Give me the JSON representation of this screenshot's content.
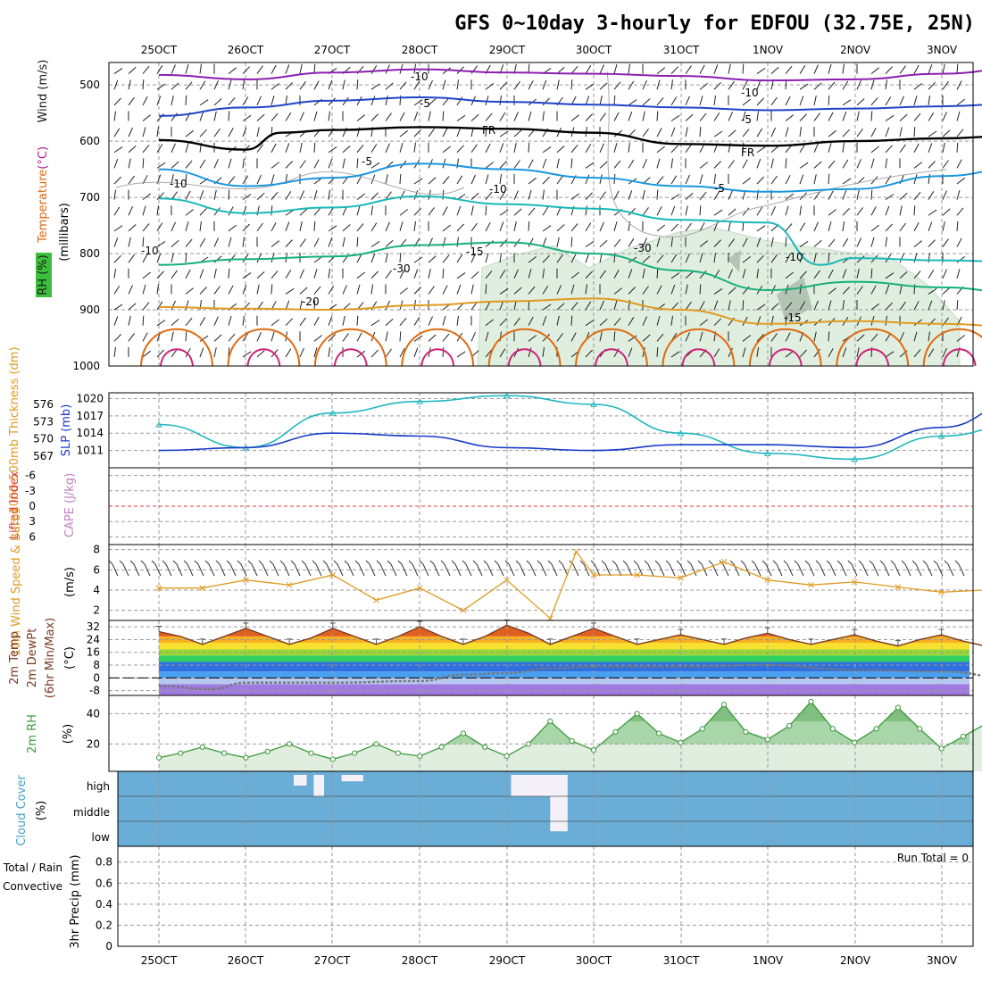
{
  "title": "GFS 0~10day 3-hourly for EDFOU (32.75E, 25N)",
  "chart_data": [
    {
      "panel": "upper-air",
      "type": "line",
      "ylabel_parts": [
        {
          "text": "RH (%)",
          "color": "#1a1a1a"
        },
        {
          "text": "Temperature",
          "color": "#e06a10"
        },
        {
          "text": "(°C)",
          "color": "#b01890"
        },
        {
          "text": "Wind (m/s)",
          "color": "#1a1a1a"
        }
      ],
      "ylabel2": "(millibars)",
      "y_ticks": [
        500,
        600,
        700,
        800,
        900,
        1000
      ],
      "ylim": [
        460,
        1000
      ],
      "x_ticks": [
        "25OCT",
        "26OCT",
        "27OCT",
        "28OCT",
        "29OCT",
        "30OCT",
        "31OCT",
        "1NOV",
        "2NOV",
        "3NOV"
      ],
      "xlim_days": [
        0,
        9.9
      ],
      "contour_labels": [
        "-10",
        "-10",
        "-5",
        "-5",
        "FR",
        "FR",
        "-5",
        "-5",
        "-10",
        "-10",
        "-15",
        "-15",
        "-20",
        "-10",
        "-10",
        "-30",
        "-30"
      ],
      "series": [
        {
          "label": "-10",
          "color": "#8a1fb0",
          "x": [
            0,
            1,
            2,
            3,
            4,
            5,
            6,
            7,
            8,
            9,
            9.9
          ],
          "y": [
            482,
            490,
            478,
            472,
            478,
            480,
            484,
            492,
            490,
            480,
            470
          ]
        },
        {
          "label": "-5",
          "color": "#1f44c8",
          "x": [
            0,
            1,
            2,
            3,
            4,
            5,
            6,
            7,
            8,
            9,
            9.9
          ],
          "y": [
            555,
            540,
            528,
            522,
            530,
            535,
            540,
            545,
            542,
            538,
            533
          ]
        },
        {
          "label": "FR",
          "color": "#000000",
          "x": [
            0,
            1,
            1.4,
            2,
            3,
            4,
            5,
            6,
            7,
            8,
            9,
            9.9
          ],
          "y": [
            598,
            615,
            585,
            580,
            575,
            578,
            585,
            605,
            608,
            600,
            595,
            590
          ]
        },
        {
          "label": "5",
          "color": "#1a96e0",
          "x": [
            0,
            1,
            2,
            3,
            4,
            5,
            6,
            7,
            8,
            9,
            9.9
          ],
          "y": [
            650,
            680,
            665,
            640,
            650,
            665,
            680,
            690,
            685,
            662,
            648
          ]
        },
        {
          "label": "10",
          "color": "#1ab8b8",
          "x": [
            0,
            1,
            2,
            3,
            4,
            5,
            6,
            7,
            7.6,
            8,
            9,
            9.9
          ],
          "y": [
            702,
            728,
            718,
            698,
            712,
            720,
            740,
            745,
            820,
            808,
            812,
            815
          ]
        },
        {
          "label": "15",
          "color": "#14b07a",
          "x": [
            0,
            1,
            2,
            3,
            4,
            5,
            6,
            7,
            8,
            9,
            9.9
          ],
          "y": [
            820,
            810,
            805,
            785,
            780,
            800,
            830,
            865,
            850,
            860,
            870
          ]
        },
        {
          "label": "20",
          "color": "#e09a20",
          "x": [
            0,
            1,
            2,
            3,
            4,
            5,
            6,
            7,
            8,
            9,
            9.9
          ],
          "y": [
            895,
            898,
            900,
            892,
            885,
            880,
            900,
            925,
            920,
            925,
            930
          ]
        }
      ]
    },
    {
      "panel": "thickness-slp",
      "type": "line",
      "ylabel_left": "1000-500mb Thickness (dm)",
      "ylabel_right": "SLP (mb)",
      "y_ticks_left": [
        567,
        570,
        573,
        576
      ],
      "y_ticks_right": [
        1011,
        1014,
        1017,
        1020
      ],
      "series": [
        {
          "name": "thickness",
          "color": "#20b8c0",
          "x": [
            0,
            1,
            2,
            3,
            4,
            5,
            6,
            7,
            8,
            9,
            9.9
          ],
          "y": [
            572.5,
            568.5,
            574.5,
            576.5,
            577.5,
            576.0,
            571.0,
            567.5,
            566.5,
            570.5,
            572.5
          ]
        },
        {
          "name": "slp",
          "color": "#1a3ac8",
          "x": [
            0,
            1,
            2,
            3,
            4,
            5,
            6,
            7,
            8,
            9,
            9.9
          ],
          "y": [
            1011.0,
            1011.5,
            1014.0,
            1013.5,
            1011.5,
            1011.0,
            1012.0,
            1012.0,
            1011.5,
            1015.0,
            1019.5
          ]
        }
      ]
    },
    {
      "panel": "stability",
      "type": "line",
      "ylabel": "Lifted Index",
      "ylabel2": "CAPE (J/kg)",
      "y_ticks": [
        "-6",
        "-3",
        "0",
        "3",
        "6"
      ],
      "zero_line_color": "#e03a3a"
    },
    {
      "panel": "wind10m",
      "type": "line",
      "ylabel": "10m Wind Speed & Barbs",
      "ylabel2": "(m/s)",
      "y_ticks": [
        2,
        4,
        6,
        8
      ],
      "series": [
        {
          "name": "speed",
          "color": "#e09a20",
          "x": [
            0,
            0.5,
            1,
            1.5,
            2,
            2.5,
            3,
            3.5,
            4,
            4.5,
            4.8,
            5,
            5.5,
            6,
            6.5,
            7,
            7.5,
            8,
            8.5,
            9,
            9.5,
            9.9
          ],
          "y": [
            4.2,
            4.2,
            5.0,
            4.5,
            5.5,
            3.0,
            4.2,
            2.0,
            5.0,
            1.2,
            7.8,
            5.5,
            5.5,
            5.2,
            6.8,
            5.0,
            4.5,
            4.8,
            4.3,
            3.8,
            4.0,
            3.8
          ]
        }
      ]
    },
    {
      "panel": "temp2m",
      "type": "line",
      "ylabel": "2m Temp",
      "ylabel2": "2m DewPt",
      "ylabel3": "(6hr Min/Max)",
      "ylabel4": "(°C)",
      "y_ticks": [
        -8,
        0,
        8,
        16,
        24,
        32
      ],
      "series": [
        {
          "name": "temperature",
          "color": "#7a3a20",
          "x": [
            0,
            0.25,
            0.5,
            0.75,
            1,
            1.25,
            1.5,
            1.75,
            2,
            2.25,
            2.5,
            2.75,
            3,
            3.25,
            3.5,
            3.75,
            4,
            4.25,
            4.5,
            4.75,
            5,
            5.25,
            5.5,
            5.75,
            6,
            6.25,
            6.5,
            6.75,
            7,
            7.25,
            7.5,
            7.75,
            8,
            8.25,
            8.5,
            8.75,
            9,
            9.25,
            9.5,
            9.75,
            9.9
          ],
          "y": [
            29,
            26,
            21,
            26,
            31,
            26,
            21,
            25,
            31,
            26,
            21,
            26,
            32,
            26,
            21,
            26,
            33,
            28,
            21,
            26,
            31,
            26,
            21,
            24,
            27,
            24,
            21,
            25,
            28,
            24,
            21,
            24,
            27,
            23,
            20,
            24,
            27,
            23,
            20,
            22,
            21
          ]
        },
        {
          "name": "dewpoint",
          "color": "#777777",
          "x": [
            0,
            0.6,
            1,
            2,
            3,
            3.5,
            4,
            4.5,
            5,
            6,
            7,
            8,
            9,
            9.9
          ],
          "y": [
            -5,
            -7,
            -3,
            -3,
            -2,
            2,
            3,
            6,
            7,
            7,
            8,
            5,
            4,
            -1
          ]
        }
      ]
    },
    {
      "panel": "rh2m",
      "type": "area",
      "ylabel": "2m RH",
      "ylabel2": "(%)",
      "y_ticks": [
        20,
        40
      ],
      "series": [
        {
          "name": "rh",
          "color": "#3c9a3c",
          "x": [
            0,
            0.25,
            0.5,
            0.75,
            1,
            1.25,
            1.5,
            1.75,
            2,
            2.25,
            2.5,
            2.75,
            3,
            3.25,
            3.5,
            3.75,
            4,
            4.25,
            4.5,
            4.75,
            5,
            5.25,
            5.5,
            5.75,
            6,
            6.25,
            6.5,
            6.75,
            7,
            7.25,
            7.5,
            7.75,
            8,
            8.25,
            8.5,
            8.75,
            9,
            9.25,
            9.5,
            9.75,
            9.9
          ],
          "y": [
            11,
            14,
            18,
            14,
            11,
            15,
            20,
            14,
            10,
            14,
            20,
            14,
            12,
            18,
            27,
            18,
            12,
            20,
            35,
            22,
            16,
            28,
            40,
            27,
            21,
            30,
            46,
            28,
            23,
            32,
            48,
            30,
            21,
            30,
            44,
            30,
            17,
            25,
            33,
            27,
            29
          ]
        }
      ]
    },
    {
      "panel": "cloud",
      "type": "heatmap",
      "ylabel": "Cloud Cover",
      "ylabel2": "(%)",
      "y_ticks": [
        "high",
        "middle",
        "low"
      ],
      "background_color": "#6aadd6",
      "patches": [
        {
          "layer": "high",
          "start_day": 1.55,
          "end_day": 1.7,
          "level": 0.5
        },
        {
          "layer": "high",
          "start_day": 1.78,
          "end_day": 1.9,
          "level": 1.0
        },
        {
          "layer": "high",
          "start_day": 2.1,
          "end_day": 2.35,
          "level": 0.3
        },
        {
          "layer": "high",
          "start_day": 4.05,
          "end_day": 4.7,
          "level": 1.0
        },
        {
          "layer": "middle",
          "start_day": 4.5,
          "end_day": 4.7,
          "level": 1.0
        },
        {
          "layer": "low",
          "start_day": 4.5,
          "end_day": 4.7,
          "level": 0.4
        }
      ]
    },
    {
      "panel": "precip",
      "type": "bar",
      "ylabel": "3hr Precip (mm)",
      "ylabel_total": "Total / Rain",
      "ylabel_conv": "Convective",
      "y_ticks": [
        "0",
        "0.2",
        "0.4",
        "0.6",
        "0.8"
      ],
      "ylim": [
        0,
        0.95
      ],
      "run_total_label": "Run Total = 0",
      "values": []
    }
  ],
  "colors": {
    "frame": "#000000",
    "grid": "#9a9a9a",
    "rh_fill": "#dfeedf",
    "rh_shade": "#a8d6a8",
    "temp_bands": [
      "#a07ae0",
      "#b6c8f0",
      "#4aa0f0",
      "#2f6fe0",
      "#2fd060",
      "#9ad830",
      "#f8e030",
      "#f8b020",
      "#e06020"
    ]
  }
}
